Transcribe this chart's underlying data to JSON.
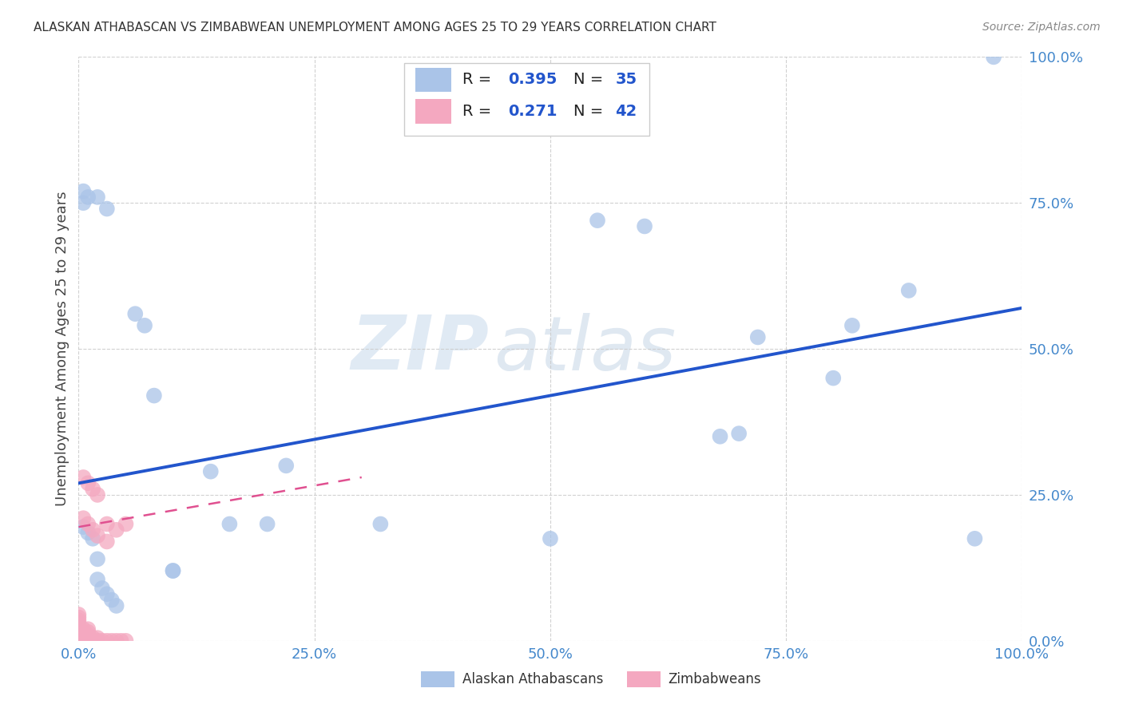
{
  "title": "ALASKAN ATHABASCAN VS ZIMBABWEAN UNEMPLOYMENT AMONG AGES 25 TO 29 YEARS CORRELATION CHART",
  "source": "Source: ZipAtlas.com",
  "ylabel": "Unemployment Among Ages 25 to 29 years",
  "xlim": [
    0,
    1
  ],
  "ylim": [
    0,
    1
  ],
  "xticks": [
    0.0,
    0.25,
    0.5,
    0.75,
    1.0
  ],
  "xticklabels": [
    "0.0%",
    "25.0%",
    "50.0%",
    "75.0%",
    "100.0%"
  ],
  "yticks": [
    0.0,
    0.25,
    0.5,
    0.75,
    1.0
  ],
  "yticklabels": [
    "0.0%",
    "25.0%",
    "50.0%",
    "75.0%",
    "100.0%"
  ],
  "legend1_r": "0.395",
  "legend1_n": "35",
  "legend2_r": "0.271",
  "legend2_n": "42",
  "blue_scatter_x": [
    0.005,
    0.01,
    0.015,
    0.02,
    0.02,
    0.025,
    0.03,
    0.035,
    0.04,
    0.06,
    0.07,
    0.08,
    0.1,
    0.1,
    0.14,
    0.16,
    0.2,
    0.22,
    0.32,
    0.5,
    0.55,
    0.6,
    0.68,
    0.7,
    0.72,
    0.8,
    0.82,
    0.88,
    0.95,
    0.97,
    0.005,
    0.01,
    0.005,
    0.02,
    0.03
  ],
  "blue_scatter_y": [
    0.195,
    0.185,
    0.175,
    0.14,
    0.105,
    0.09,
    0.08,
    0.07,
    0.06,
    0.56,
    0.54,
    0.42,
    0.12,
    0.12,
    0.29,
    0.2,
    0.2,
    0.3,
    0.2,
    0.175,
    0.72,
    0.71,
    0.35,
    0.355,
    0.52,
    0.45,
    0.54,
    0.6,
    0.175,
    1.0,
    0.75,
    0.76,
    0.77,
    0.76,
    0.74
  ],
  "pink_scatter_x": [
    0.0,
    0.0,
    0.0,
    0.0,
    0.0,
    0.0,
    0.0,
    0.0,
    0.0,
    0.0,
    0.005,
    0.005,
    0.005,
    0.005,
    0.005,
    0.01,
    0.01,
    0.01,
    0.01,
    0.01,
    0.015,
    0.015,
    0.02,
    0.02,
    0.025,
    0.03,
    0.035,
    0.04,
    0.045,
    0.05,
    0.005,
    0.01,
    0.015,
    0.02,
    0.005,
    0.01,
    0.015,
    0.02,
    0.03,
    0.03,
    0.04,
    0.05
  ],
  "pink_scatter_y": [
    0.0,
    0.005,
    0.01,
    0.015,
    0.02,
    0.025,
    0.03,
    0.035,
    0.04,
    0.045,
    0.0,
    0.005,
    0.01,
    0.015,
    0.02,
    0.0,
    0.005,
    0.01,
    0.015,
    0.02,
    0.0,
    0.005,
    0.0,
    0.005,
    0.0,
    0.0,
    0.0,
    0.0,
    0.0,
    0.0,
    0.28,
    0.27,
    0.26,
    0.25,
    0.21,
    0.2,
    0.19,
    0.18,
    0.17,
    0.2,
    0.19,
    0.2
  ],
  "blue_line_x": [
    0.0,
    1.0
  ],
  "blue_line_y": [
    0.27,
    0.57
  ],
  "pink_line_x": [
    0.0,
    0.3
  ],
  "pink_line_y": [
    0.195,
    0.28
  ],
  "watermark_zip": "ZIP",
  "watermark_atlas": "atlas",
  "scatter_size": 200,
  "blue_color": "#aac4e8",
  "pink_color": "#f4a8c0",
  "blue_line_color": "#2255cc",
  "pink_line_color": "#e05090",
  "grid_color": "#cccccc",
  "title_color": "#333333",
  "tick_color": "#4488cc",
  "background_color": "#ffffff"
}
